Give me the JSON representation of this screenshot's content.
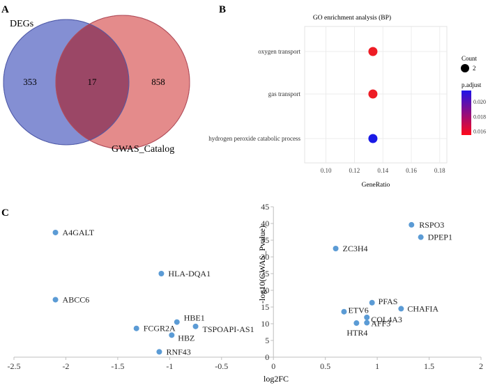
{
  "panels": {
    "a": "A",
    "b": "B",
    "c": "C"
  },
  "chart_data": [
    {
      "type": "venn",
      "sets": [
        {
          "name": "DEGs",
          "only": 353,
          "color": "#6f7ccc"
        },
        {
          "name": "GWAS_Catalog",
          "only": 858,
          "color": "#e07777"
        }
      ],
      "intersection": 17,
      "overlap_color": "#9b4766"
    },
    {
      "type": "scatter",
      "title": "GO enrichment analysis (BP)",
      "xlabel": "GeneRatio",
      "xlim": [
        0.085,
        0.185
      ],
      "xticks": [
        "0.10",
        "0.12",
        "0.14",
        "0.16",
        "0.18"
      ],
      "categories": [
        "oxygen transport",
        "gas transport",
        "hydrogen peroxide catabolic process"
      ],
      "points": [
        {
          "term": "oxygen transport",
          "gene_ratio": 0.133,
          "count": 2,
          "p_adjust": 0.0155,
          "color": "#ee1c25"
        },
        {
          "term": "gas transport",
          "gene_ratio": 0.133,
          "count": 2,
          "p_adjust": 0.0155,
          "color": "#ee1c25"
        },
        {
          "term": "hydrogen peroxide catabolic process",
          "gene_ratio": 0.133,
          "count": 2,
          "p_adjust": 0.0215,
          "color": "#1a1ae6"
        }
      ],
      "legend": {
        "count_title": "Count",
        "count_value": "2",
        "padj_title": "p.adjust",
        "padj_ticks": [
          "0.020",
          "0.018",
          "0.016"
        ],
        "padj_range": [
          0.0155,
          0.0215
        ],
        "gradient_colors": [
          "#1f12e8",
          "#ff0a1a"
        ]
      }
    },
    {
      "type": "scatter",
      "xlabel": "log2FC",
      "ylabel": "-log10(GWAS_Pvalue)",
      "xlim": [
        -2.5,
        2
      ],
      "ylim": [
        0,
        45
      ],
      "xticks": [
        "-2.5",
        "-2",
        "-1.5",
        "-1",
        "-0.5",
        "0",
        "0.5",
        "1",
        "1.5",
        "2"
      ],
      "yticks": [
        "0",
        "5",
        "10",
        "15",
        "20",
        "25",
        "30",
        "35",
        "40",
        "45"
      ],
      "point_color": "#5b9bd5",
      "points": [
        {
          "label": "A4GALT",
          "x": -2.1,
          "y": 37.3
        },
        {
          "label": "HLA-DQA1",
          "x": -1.08,
          "y": 25.0
        },
        {
          "label": "ABCC6",
          "x": -2.1,
          "y": 17.2
        },
        {
          "label": "HBE1",
          "x": -0.93,
          "y": 10.5
        },
        {
          "label": "FCGR2A",
          "x": -1.32,
          "y": 8.6
        },
        {
          "label": "TSPOAPI-AS1",
          "x": -0.75,
          "y": 9.2
        },
        {
          "label": "HBZ",
          "x": -0.98,
          "y": 6.6
        },
        {
          "label": "RNF43",
          "x": -1.1,
          "y": 1.6
        },
        {
          "label": "RSPO3",
          "x": 1.33,
          "y": 39.6
        },
        {
          "label": "DPEP1",
          "x": 1.42,
          "y": 35.9
        },
        {
          "label": "ZC3H4",
          "x": 0.6,
          "y": 32.5
        },
        {
          "label": "PFAS",
          "x": 0.95,
          "y": 16.3
        },
        {
          "label": "CHAFIA",
          "x": 1.23,
          "y": 14.5
        },
        {
          "label": "ETV6",
          "x": 0.68,
          "y": 13.6
        },
        {
          "label": "COL4A3",
          "x": 0.9,
          "y": 11.9
        },
        {
          "label": "AFF3",
          "x": 0.9,
          "y": 10.3
        },
        {
          "label": "HTR4",
          "x": 0.8,
          "y": 10.2
        }
      ]
    }
  ]
}
